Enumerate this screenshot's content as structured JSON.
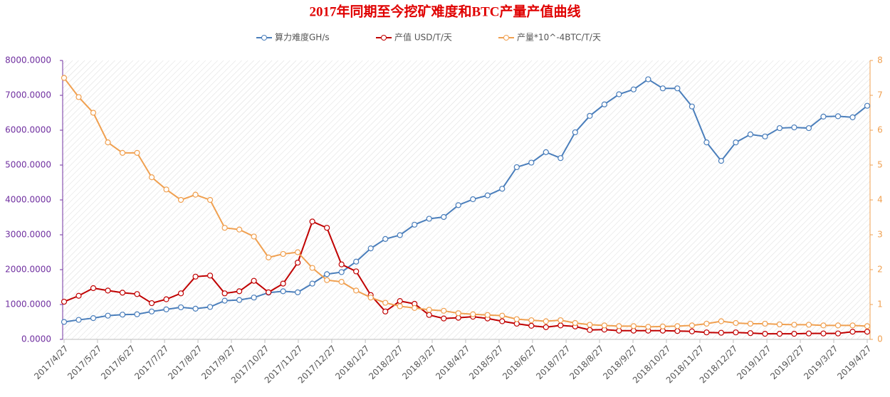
{
  "chart_data": {
    "type": "line",
    "title": "2017年同期至今挖矿难度和BTC产量产值曲线",
    "xlim": [
      0,
      55
    ],
    "xticks": [
      {
        "value": 0,
        "label": "2017/4/27"
      },
      {
        "value": 2.29,
        "label": "2017/5/27"
      },
      {
        "value": 4.58,
        "label": "2017/6/27"
      },
      {
        "value": 6.88,
        "label": "2017/7/27"
      },
      {
        "value": 9.17,
        "label": "2017/8/27"
      },
      {
        "value": 11.46,
        "label": "2017/9/27"
      },
      {
        "value": 13.75,
        "label": "2017/10/27"
      },
      {
        "value": 16.04,
        "label": "2017/11/27"
      },
      {
        "value": 18.33,
        "label": "2017/12/27"
      },
      {
        "value": 20.63,
        "label": "2018/1/27"
      },
      {
        "value": 22.92,
        "label": "2018/2/27"
      },
      {
        "value": 25.21,
        "label": "2018/3/27"
      },
      {
        "value": 27.5,
        "label": "2018/4/27"
      },
      {
        "value": 29.79,
        "label": "2018/5/27"
      },
      {
        "value": 32.08,
        "label": "2018/6/27"
      },
      {
        "value": 34.38,
        "label": "2018/7/27"
      },
      {
        "value": 36.67,
        "label": "2018/8/27"
      },
      {
        "value": 38.96,
        "label": "2018/9/27"
      },
      {
        "value": 41.25,
        "label": "2018/10/27"
      },
      {
        "value": 43.54,
        "label": "2018/11/27"
      },
      {
        "value": 45.83,
        "label": "2018/12/27"
      },
      {
        "value": 48.13,
        "label": "2019/1/27"
      },
      {
        "value": 50.42,
        "label": "2019/2/27"
      },
      {
        "value": 52.71,
        "label": "2019/3/27"
      },
      {
        "value": 55,
        "label": "2019/4/27"
      }
    ],
    "ylim": [
      0,
      8000
    ],
    "yticks": [
      {
        "value": 0,
        "label": "0.0000"
      },
      {
        "value": 1000,
        "label": "1000.0000"
      },
      {
        "value": 2000,
        "label": "2000.0000"
      },
      {
        "value": 3000,
        "label": "3000.0000"
      },
      {
        "value": 4000,
        "label": "4000.0000"
      },
      {
        "value": 5000,
        "label": "5000.0000"
      },
      {
        "value": 6000,
        "label": "6000.0000"
      },
      {
        "value": 7000,
        "label": "7000.0000"
      },
      {
        "value": 8000,
        "label": "8000.0000"
      }
    ],
    "y2lim": [
      0,
      8
    ],
    "y2ticks": [
      0,
      1,
      2,
      3,
      4,
      5,
      6,
      7,
      8
    ],
    "legend": "top",
    "series": [
      {
        "name": "算力难度GH/s",
        "color": "#4a7ebb",
        "axis": "y",
        "values": [
          500,
          560,
          610,
          680,
          710,
          720,
          800,
          860,
          920,
          880,
          930,
          1110,
          1130,
          1200,
          1340,
          1380,
          1350,
          1600,
          1870,
          1930,
          2230,
          2610,
          2880,
          2990,
          3290,
          3460,
          3510,
          3850,
          4020,
          4130,
          4320,
          4940,
          5070,
          5370,
          5200,
          5940,
          6410,
          6740,
          7030,
          7170,
          7460,
          7200,
          7200,
          6680,
          5650,
          5120,
          5650,
          5880,
          5820,
          6060,
          6080,
          6060,
          6390,
          6400,
          6370,
          6700
        ]
      },
      {
        "name": "产值 USD/T/天",
        "color": "#c00000",
        "axis": "y",
        "values": [
          1080,
          1250,
          1470,
          1400,
          1340,
          1300,
          1040,
          1150,
          1320,
          1800,
          1830,
          1320,
          1380,
          1680,
          1350,
          1600,
          2200,
          3380,
          3200,
          2150,
          1950,
          1270,
          800,
          1100,
          1020,
          700,
          600,
          620,
          650,
          600,
          520,
          450,
          390,
          350,
          400,
          370,
          270,
          280,
          250,
          250,
          250,
          250,
          240,
          230,
          200,
          190,
          200,
          180,
          160,
          160,
          160,
          170,
          170,
          170,
          220,
          220
        ]
      },
      {
        "name": "产量*10^-4BTC/T/天",
        "color": "#f0a050",
        "axis": "y2",
        "values": [
          7.5,
          6.95,
          6.5,
          5.65,
          5.35,
          5.35,
          4.65,
          4.3,
          4.0,
          4.15,
          4.0,
          3.2,
          3.15,
          2.95,
          2.35,
          2.45,
          2.5,
          2.05,
          1.7,
          1.65,
          1.4,
          1.2,
          1.05,
          0.95,
          0.9,
          0.85,
          0.82,
          0.75,
          0.72,
          0.7,
          0.68,
          0.58,
          0.55,
          0.52,
          0.55,
          0.47,
          0.42,
          0.4,
          0.38,
          0.38,
          0.36,
          0.37,
          0.38,
          0.4,
          0.45,
          0.52,
          0.47,
          0.45,
          0.45,
          0.43,
          0.42,
          0.42,
          0.4,
          0.4,
          0.4,
          0.38
        ]
      }
    ]
  }
}
